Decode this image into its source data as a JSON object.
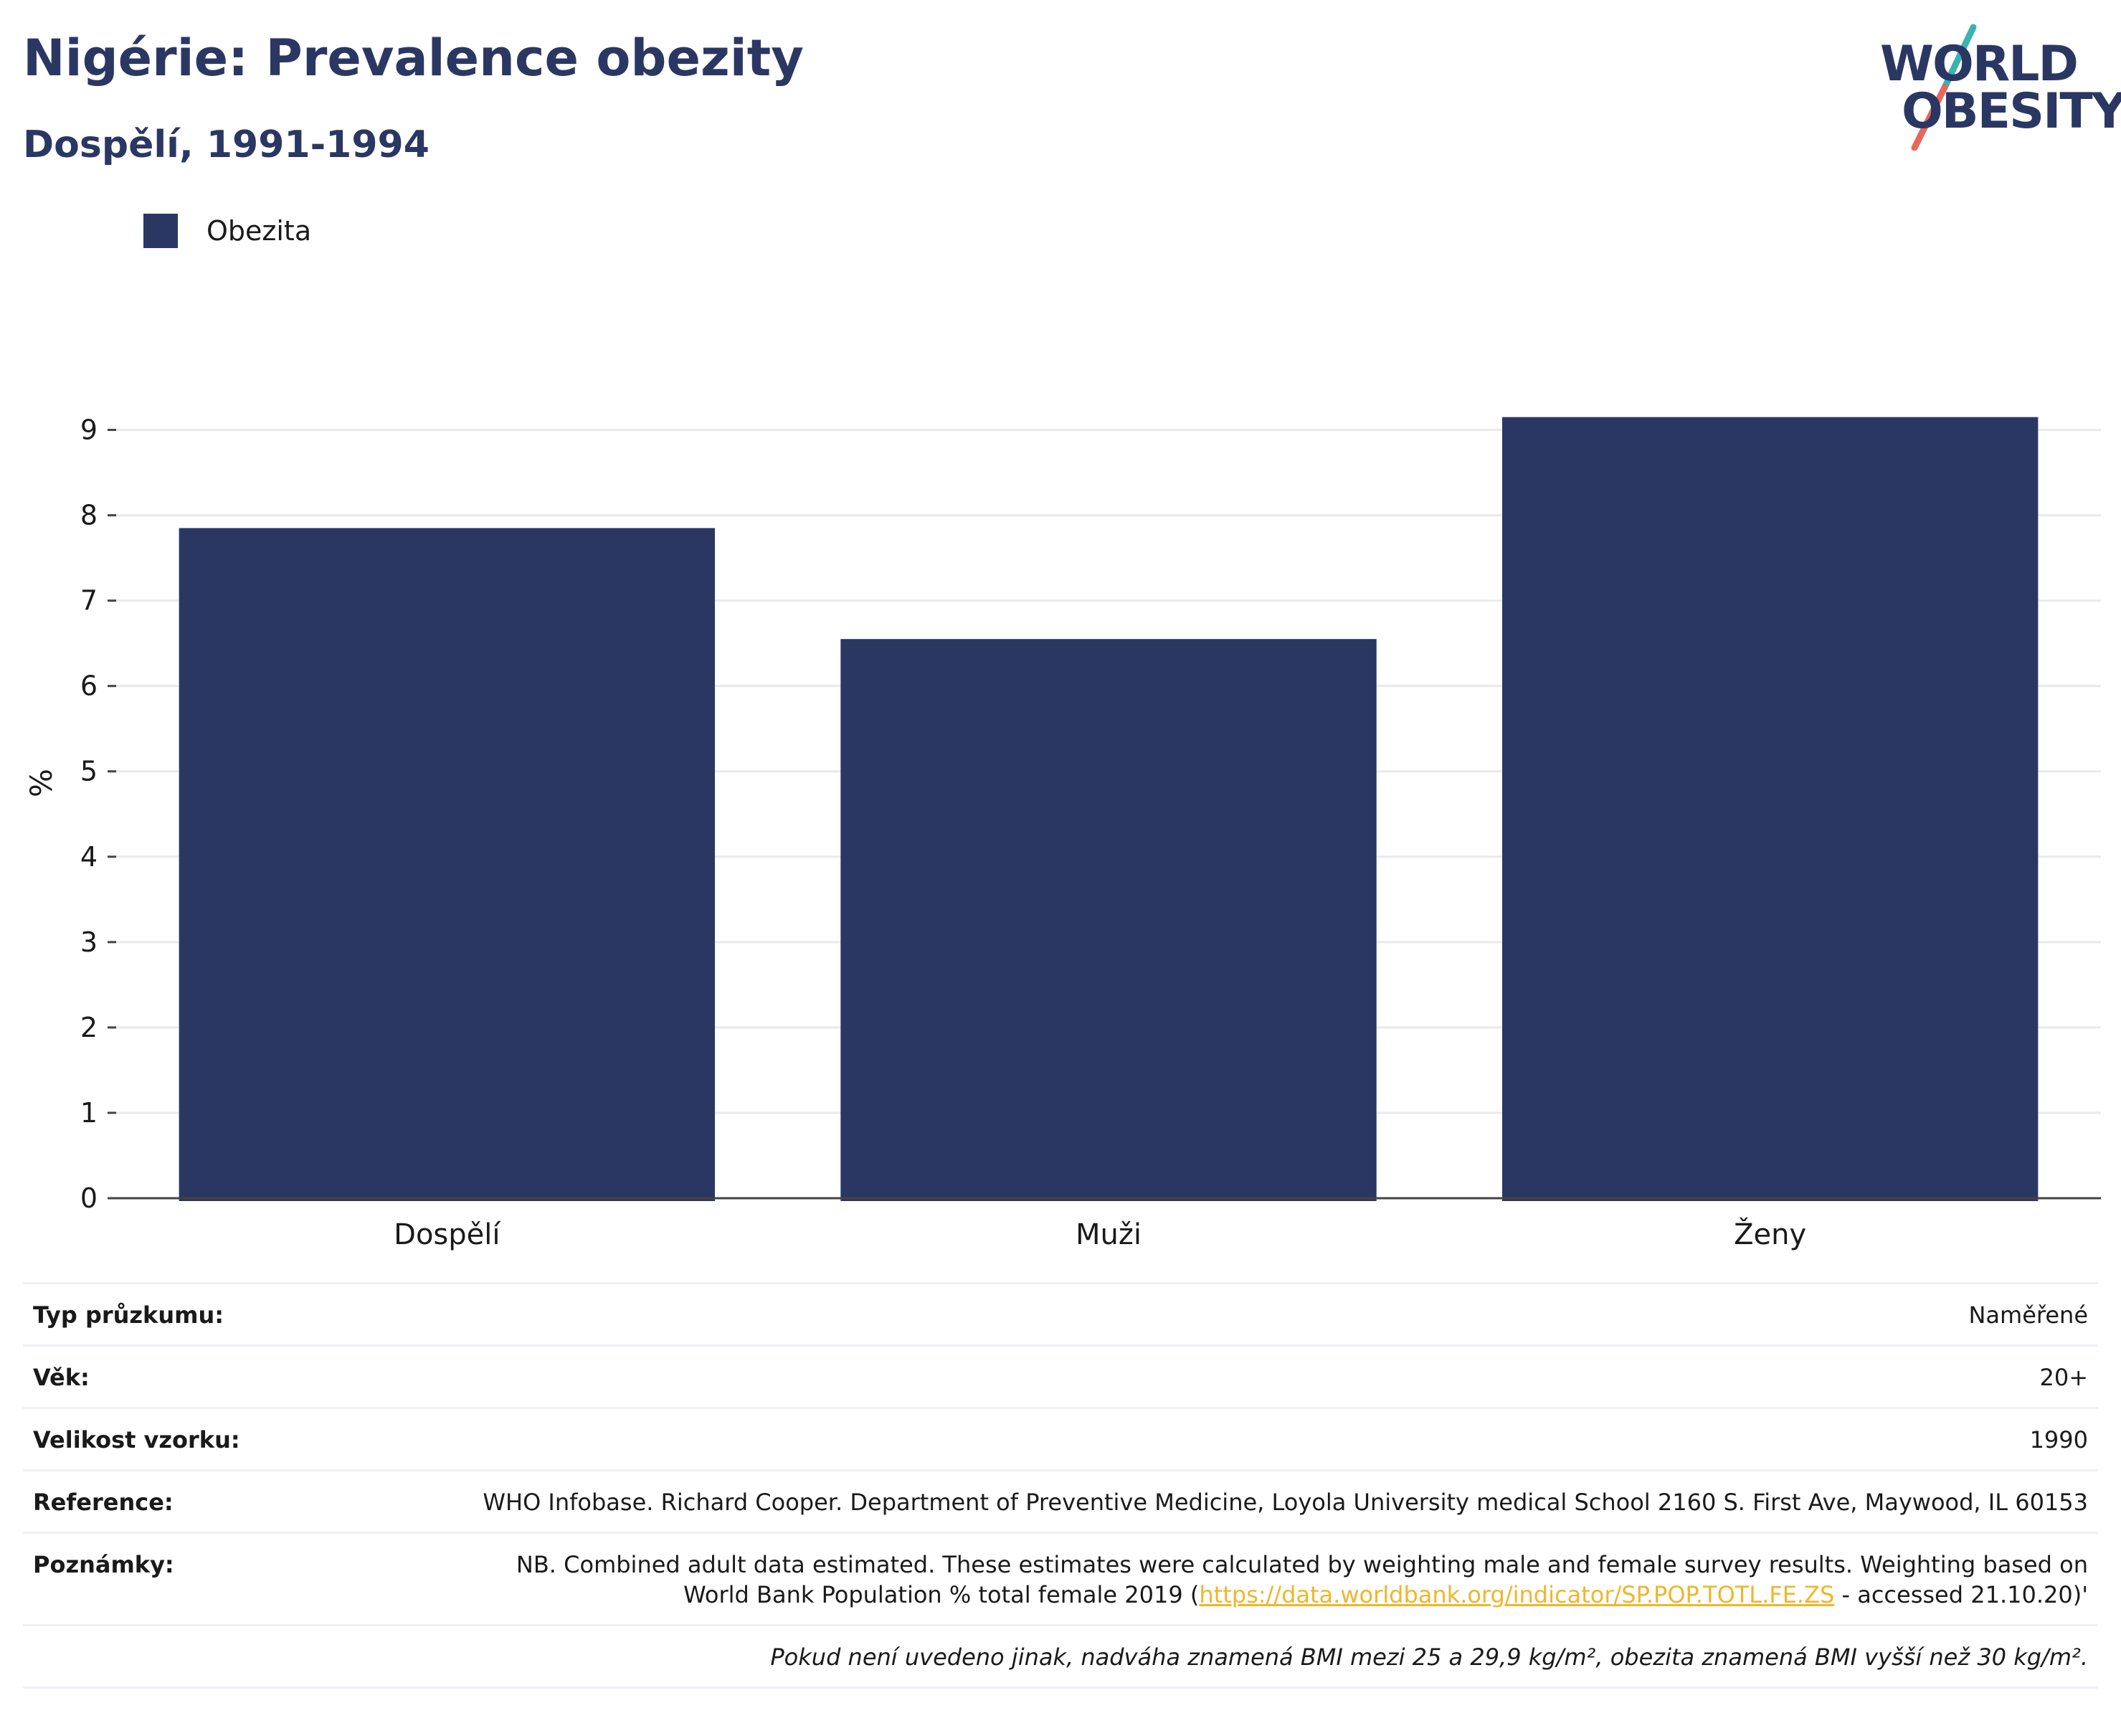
{
  "header": {
    "title": "Nigérie: Prevalence obezity",
    "subtitle": "Dospělí, 1991-1994"
  },
  "logo": {
    "line1": "WORLD",
    "line2": "OBESITY",
    "colors": {
      "text": "#2b3763",
      "teal": "#3bb3b0",
      "coral": "#e5685a"
    }
  },
  "chart_data": {
    "type": "bar",
    "categories": [
      "Dospělí",
      "Muži",
      "Ženy"
    ],
    "series": [
      {
        "name": "Obezita",
        "values": [
          7.85,
          6.55,
          9.15
        ],
        "color": "#2b3763"
      }
    ],
    "ylabel": "%",
    "ylim": [
      0,
      9.5
    ],
    "yticks": [
      0,
      1,
      2,
      3,
      4,
      5,
      6,
      7,
      8,
      9
    ],
    "grid": true,
    "legend": "top-left"
  },
  "info": {
    "rows": [
      {
        "key": "Typ průzkumu:",
        "value": "Naměřené"
      },
      {
        "key": "Věk:",
        "value": "20+"
      },
      {
        "key": "Velikost vzorku:",
        "value": "1990"
      },
      {
        "key": "Reference:",
        "value": "WHO Infobase. Richard Cooper. Department of Preventive Medicine, Loyola University medical School 2160 S. First Ave, Maywood, IL 60153"
      }
    ],
    "notes": {
      "key": "Poznámky:",
      "text_before": "NB. Combined adult data estimated. These estimates were calculated by weighting male and female survey results. Weighting based on World Bank Population % total female 2019 (",
      "link": "https://data.worldbank.org/indicator/SP.POP.TOTL.FE.ZS",
      "text_after": " - accessed 21.10.20)'"
    },
    "footnote": "Pokud není uvedeno jinak, nadváha znamená BMI mezi 25 a 29,9 kg/m², obezita znamená BMI vyšší než 30 kg/m²."
  }
}
